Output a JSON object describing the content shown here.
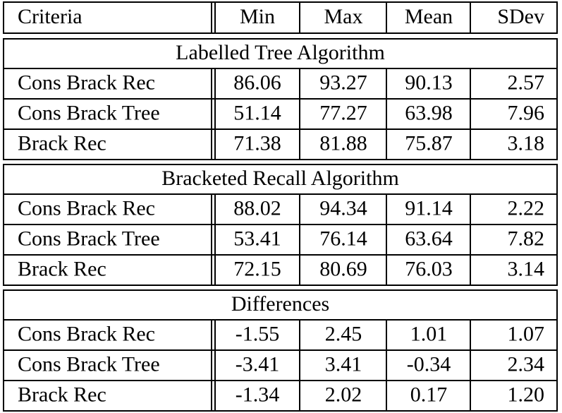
{
  "header": [
    "Criteria",
    "Min",
    "Max",
    "Mean",
    "SDev"
  ],
  "sections": [
    {
      "title": "Labelled Tree Algorithm",
      "rows": [
        [
          "Cons Brack Rec",
          "86.06",
          "93.27",
          "90.13",
          "2.57"
        ],
        [
          "Cons Brack Tree",
          "51.14",
          "77.27",
          "63.98",
          "7.96"
        ],
        [
          "Brack Rec",
          "71.38",
          "81.88",
          "75.87",
          "3.18"
        ]
      ]
    },
    {
      "title": "Bracketed Recall Algorithm",
      "rows": [
        [
          "Cons Brack Rec",
          "88.02",
          "94.34",
          "91.14",
          "2.22"
        ],
        [
          "Cons Brack Tree",
          "53.41",
          "76.14",
          "63.64",
          "7.82"
        ],
        [
          "Brack Rec",
          "72.15",
          "80.69",
          "76.03",
          "3.14"
        ]
      ]
    },
    {
      "title": "Differences",
      "rows": [
        [
          "Cons Brack Rec",
          "-1.55",
          "2.45",
          "1.01",
          "1.07"
        ],
        [
          "Cons Brack Tree",
          "-3.41",
          "3.41",
          "-0.34",
          "2.34"
        ],
        [
          "Brack Rec",
          "-1.34",
          "2.02",
          "0.17",
          "1.20"
        ]
      ]
    }
  ]
}
